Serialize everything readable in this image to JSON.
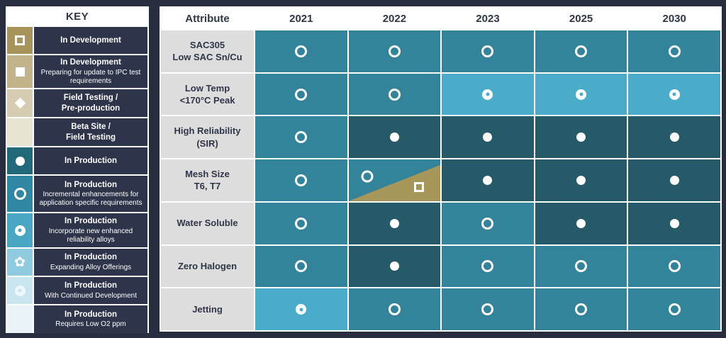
{
  "colors": {
    "page_bg": "#282E40",
    "panel_label_bg": "#2E3449",
    "header_bg": "#FFFFFF",
    "header_text": "#2F3648",
    "attribute_bg": "#DDDDDD",
    "grid_line": "#FFFFFF",
    "cell_medium": "#33839A",
    "cell_dark": "#275A68",
    "cell_light": "#4BACC9",
    "cell_khaki": "#A79659"
  },
  "icons": {
    "flower_glyph": "✿"
  },
  "key": {
    "title": "KEY",
    "items": [
      {
        "swatch": "#A6945C",
        "symbol": "open-square",
        "label": "In Development",
        "sublabel": ""
      },
      {
        "swatch": "#C2B38B",
        "symbol": "filled-square",
        "label": "In Development",
        "sublabel": "Preparing for update to IPC test requirements"
      },
      {
        "swatch": "#D5CCB1",
        "symbol": "filled-diamond",
        "label": "Field Testing /\nPre-production",
        "sublabel": ""
      },
      {
        "swatch": "#E8E4D4",
        "symbol": "none",
        "label": "Beta Site /\nField Testing",
        "sublabel": ""
      },
      {
        "swatch": "#216879",
        "symbol": "filled-circle",
        "label": "In Production",
        "sublabel": ""
      },
      {
        "swatch": "#2F87A3",
        "symbol": "open-circle",
        "label": "In Production",
        "sublabel": "Incremental enhancements for application specific requirements"
      },
      {
        "swatch": "#49A7C4",
        "symbol": "bullseye",
        "label": "In Production",
        "sublabel": "Incorporate new enhanced reliability alloys"
      },
      {
        "swatch": "#8FCADE",
        "symbol": "flower",
        "label": "In Production",
        "sublabel": "Expanding Alloy Offerings"
      },
      {
        "swatch": "#C9E5EF",
        "symbol": "bullseye-faint",
        "label": "In Production",
        "sublabel": "With Continued Development"
      },
      {
        "swatch": "#EAF4F8",
        "symbol": "none",
        "label": "In Production",
        "sublabel": "Requires Low O2 ppm"
      }
    ]
  },
  "table": {
    "columns": [
      "Attribute",
      "2021",
      "2022",
      "2023",
      "2025",
      "2030"
    ],
    "rows": [
      {
        "attribute": "SAC305\nLow SAC Sn/Cu",
        "cells": [
          {
            "bg": "medium",
            "symbol": "open-circle"
          },
          {
            "bg": "medium",
            "symbol": "open-circle"
          },
          {
            "bg": "medium",
            "symbol": "open-circle"
          },
          {
            "bg": "medium",
            "symbol": "open-circle"
          },
          {
            "bg": "medium",
            "symbol": "open-circle"
          }
        ]
      },
      {
        "attribute": "Low Temp\n<170°C Peak",
        "cells": [
          {
            "bg": "medium",
            "symbol": "open-circle"
          },
          {
            "bg": "medium",
            "symbol": "open-circle"
          },
          {
            "bg": "light",
            "symbol": "bullseye"
          },
          {
            "bg": "light",
            "symbol": "bullseye"
          },
          {
            "bg": "light",
            "symbol": "bullseye"
          }
        ]
      },
      {
        "attribute": "High Reliability\n(SIR)",
        "cells": [
          {
            "bg": "medium",
            "symbol": "open-circle"
          },
          {
            "bg": "dark",
            "symbol": "filled-circle"
          },
          {
            "bg": "dark",
            "symbol": "filled-circle"
          },
          {
            "bg": "dark",
            "symbol": "filled-circle"
          },
          {
            "bg": "dark",
            "symbol": "filled-circle"
          }
        ]
      },
      {
        "attribute": "Mesh Size\nT6, T7",
        "cells": [
          {
            "bg": "medium",
            "symbol": "open-circle"
          },
          {
            "bg": "medium",
            "symbol": "open-circle",
            "split": {
              "bg": "khaki",
              "symbol": "open-square"
            }
          },
          {
            "bg": "dark",
            "symbol": "filled-circle"
          },
          {
            "bg": "dark",
            "symbol": "filled-circle"
          },
          {
            "bg": "dark",
            "symbol": "filled-circle"
          }
        ]
      },
      {
        "attribute": "Water Soluble",
        "cells": [
          {
            "bg": "medium",
            "symbol": "open-circle"
          },
          {
            "bg": "dark",
            "symbol": "filled-circle"
          },
          {
            "bg": "medium",
            "symbol": "open-circle"
          },
          {
            "bg": "dark",
            "symbol": "filled-circle"
          },
          {
            "bg": "dark",
            "symbol": "filled-circle"
          }
        ]
      },
      {
        "attribute": "Zero Halogen",
        "cells": [
          {
            "bg": "medium",
            "symbol": "open-circle"
          },
          {
            "bg": "dark",
            "symbol": "filled-circle"
          },
          {
            "bg": "medium",
            "symbol": "open-circle"
          },
          {
            "bg": "medium",
            "symbol": "open-circle"
          },
          {
            "bg": "medium",
            "symbol": "open-circle"
          }
        ]
      },
      {
        "attribute": "Jetting",
        "cells": [
          {
            "bg": "light",
            "symbol": "bullseye"
          },
          {
            "bg": "medium",
            "symbol": "open-circle"
          },
          {
            "bg": "medium",
            "symbol": "open-circle"
          },
          {
            "bg": "medium",
            "symbol": "open-circle"
          },
          {
            "bg": "medium",
            "symbol": "open-circle"
          }
        ]
      }
    ]
  },
  "chart_data": {
    "type": "table",
    "columns": [
      "2021",
      "2022",
      "2023",
      "2025",
      "2030"
    ],
    "legend": {
      "open-square": "In Development",
      "filled-square": "In Development - Preparing for update to IPC test requirements",
      "filled-diamond": "Field Testing / Pre-production",
      "blank-beige": "Beta Site / Field Testing",
      "filled-circle": "In Production",
      "open-circle": "In Production - Incremental enhancements for application specific requirements",
      "bullseye": "In Production - Incorporate new enhanced reliability alloys",
      "flower": "In Production - Expanding Alloy Offerings",
      "bullseye-faint": "In Production - With Continued Development",
      "blank-pale-blue": "In Production - Requires Low O2 ppm"
    },
    "rows": [
      {
        "attribute": "SAC305 Low SAC Sn/Cu",
        "values": [
          "open-circle",
          "open-circle",
          "open-circle",
          "open-circle",
          "open-circle"
        ]
      },
      {
        "attribute": "Low Temp <170°C Peak",
        "values": [
          "open-circle",
          "open-circle",
          "bullseye",
          "bullseye",
          "bullseye"
        ]
      },
      {
        "attribute": "High Reliability (SIR)",
        "values": [
          "open-circle",
          "filled-circle",
          "filled-circle",
          "filled-circle",
          "filled-circle"
        ]
      },
      {
        "attribute": "Mesh Size T6, T7",
        "values": [
          "open-circle",
          "open-circle + open-square",
          "filled-circle",
          "filled-circle",
          "filled-circle"
        ]
      },
      {
        "attribute": "Water Soluble",
        "values": [
          "open-circle",
          "filled-circle",
          "open-circle",
          "filled-circle",
          "filled-circle"
        ]
      },
      {
        "attribute": "Zero Halogen",
        "values": [
          "open-circle",
          "filled-circle",
          "open-circle",
          "open-circle",
          "open-circle"
        ]
      },
      {
        "attribute": "Jetting",
        "values": [
          "bullseye",
          "open-circle",
          "open-circle",
          "open-circle",
          "open-circle"
        ]
      }
    ]
  }
}
